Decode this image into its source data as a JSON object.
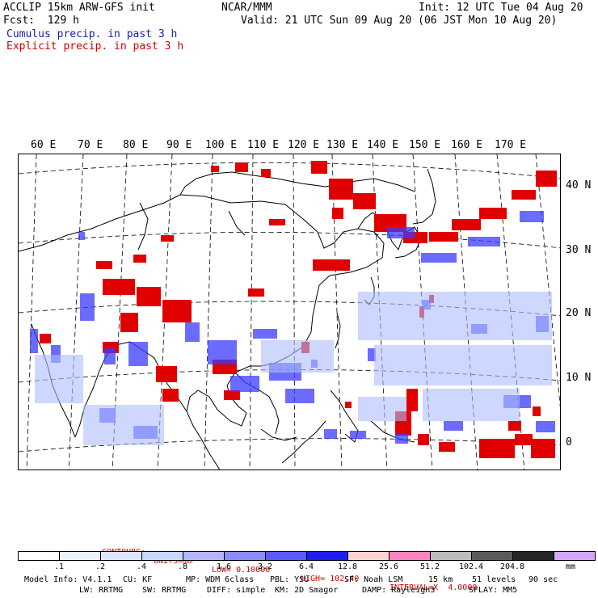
{
  "header": {
    "title": "ACCLIP 15km ARW-GFS init",
    "forecast": "Fcst:  129 h",
    "center": "NCAR/MMM",
    "init": "Init: 12 UTC Tue 04 Aug 20",
    "valid": "Valid: 21 UTC Sun 09 Aug 20 (06 JST Mon 10 Aug 20)",
    "legend_cumulus": "Cumulus precip. in past 3 h",
    "legend_explicit": "Explicit precip. in past 3 h"
  },
  "map": {
    "lon_labels": [
      "60 E",
      "70 E",
      "80 E",
      "90 E",
      "100 E",
      "110 E",
      "120 E",
      "130 E",
      "140 E",
      "150 E",
      "160 E",
      "170 E"
    ],
    "lat_labels": [
      "40 N",
      "30 N",
      "20 N",
      "10 N",
      "0"
    ],
    "colors": {
      "cumulus": "#3a3aff",
      "explicit": "#e00000",
      "coast": "#000000",
      "grid": "#000000"
    }
  },
  "contours": {
    "label": "CONTOURS:",
    "units": "UNITS=mm",
    "low": "LOW= 0.10000",
    "high": "HIGH= 102.40",
    "interval": "INTERVAL=X  4.0000"
  },
  "colorbar": {
    "colors": [
      "#ffffff",
      "#eef2ff",
      "#dde6ff",
      "#c8d8ff",
      "#b4b4ff",
      "#8c8cff",
      "#5a5aff",
      "#1e1eef",
      "#ffd2d2",
      "#ff82c0",
      "#bcbcbc",
      "#5a5a5a",
      "#262626",
      "#d7a6ff"
    ],
    "ticks": [
      ".1",
      ".2",
      ".4",
      ".8",
      "1.6",
      "3.2",
      "6.4",
      "12.8",
      "25.6",
      "51.2",
      "102.4",
      "204.8"
    ],
    "unit": "mm"
  },
  "model_info": {
    "line1": [
      "Model Info: V4.1.1",
      "CU: KF",
      "MP: WDM 6class",
      "PBL: YSU",
      "SF: Noah LSM",
      "15 km",
      "51 levels",
      "90 sec"
    ],
    "line2": [
      "LW: RRTMG",
      "SW: RRTMG",
      "DIFF: simple",
      "KM: 2D Smagor",
      "DAMP: Rayleigh3",
      "SFLAY: MM5"
    ]
  }
}
